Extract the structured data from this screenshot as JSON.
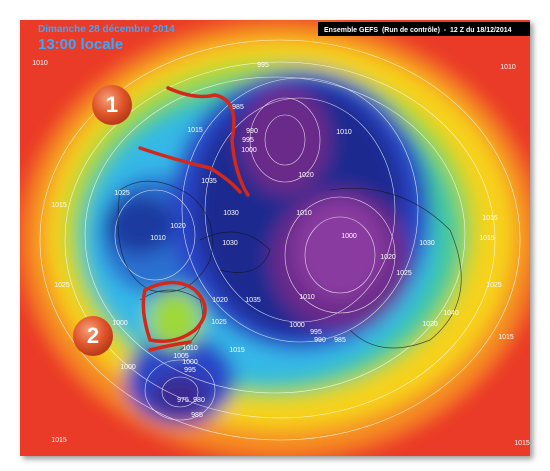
{
  "header": {
    "date": "Dimanche 28 décembre 2014",
    "time": "13:00 locale",
    "model": "Ensemble GEFS  (Run de contrôle)  -  12 Z du 18/12/2014"
  },
  "markers": [
    "1",
    "2"
  ],
  "isobar_labels": [
    "1010",
    "995",
    "1010",
    "985",
    "1015",
    "1010",
    "990",
    "995",
    "1000",
    "1020",
    "1025",
    "1035",
    "1010",
    "1030",
    "1010",
    "1020",
    "1000",
    "1030",
    "1015",
    "1015",
    "1020",
    "1030",
    "1025",
    "1025",
    "1020",
    "1035",
    "1010",
    "1030",
    "1040",
    "1000",
    "995",
    "990",
    "985",
    "1025",
    "1000",
    "1010",
    "1005",
    "1000",
    "995",
    "1000",
    "1015",
    "975",
    "980",
    "985",
    "1015",
    "1015",
    "1015",
    "1025",
    "1015"
  ]
}
